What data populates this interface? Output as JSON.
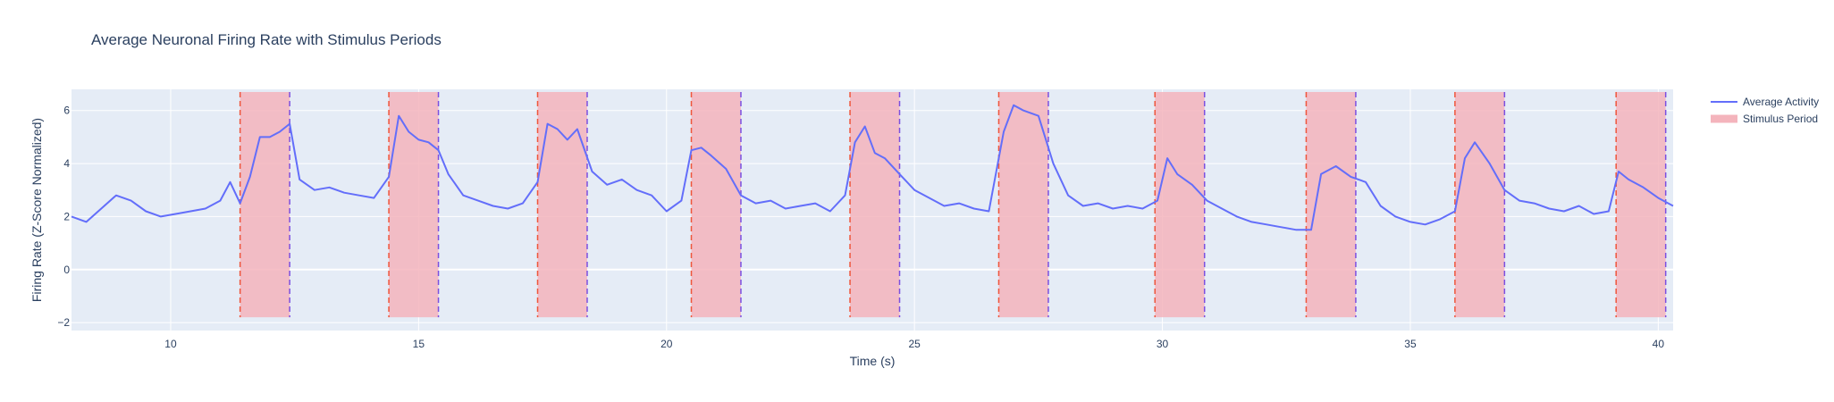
{
  "chart_data": {
    "type": "line",
    "title": "Average Neuronal Firing Rate with Stimulus Periods",
    "xlabel": "Time (s)",
    "ylabel": "Firing Rate (Z-Score Normalized)",
    "xlim": [
      8.0,
      40.3
    ],
    "ylim": [
      -2.3,
      6.8
    ],
    "x_ticks": [
      10,
      15,
      20,
      25,
      30,
      35,
      40
    ],
    "y_ticks": [
      -2,
      0,
      2,
      4,
      6
    ],
    "grid": true,
    "legend_position": "top-right",
    "colors": {
      "line": "#636efa",
      "stimulus_fill": "#f4b4bc",
      "stimulus_start_line": "#ef553b",
      "stimulus_end_line": "#7b4fe0",
      "plot_bg": "#e5ecf6",
      "grid": "#ffffff"
    },
    "series": [
      {
        "name": "Average Activity",
        "x": [
          8.0,
          8.3,
          8.6,
          8.9,
          9.2,
          9.5,
          9.8,
          10.1,
          10.4,
          10.7,
          11.0,
          11.2,
          11.4,
          11.6,
          11.8,
          12.0,
          12.2,
          12.4,
          12.6,
          12.9,
          13.2,
          13.5,
          13.8,
          14.1,
          14.4,
          14.6,
          14.8,
          15.0,
          15.2,
          15.4,
          15.6,
          15.9,
          16.2,
          16.5,
          16.8,
          17.1,
          17.4,
          17.6,
          17.8,
          18.0,
          18.2,
          18.5,
          18.8,
          19.1,
          19.4,
          19.7,
          20.0,
          20.3,
          20.5,
          20.7,
          20.9,
          21.2,
          21.5,
          21.8,
          22.1,
          22.4,
          22.7,
          23.0,
          23.3,
          23.6,
          23.8,
          24.0,
          24.2,
          24.4,
          24.7,
          25.0,
          25.3,
          25.6,
          25.9,
          26.2,
          26.5,
          26.8,
          27.0,
          27.2,
          27.5,
          27.8,
          28.1,
          28.4,
          28.7,
          29.0,
          29.3,
          29.6,
          29.9,
          30.1,
          30.3,
          30.6,
          30.9,
          31.2,
          31.5,
          31.8,
          32.1,
          32.4,
          32.7,
          33.0,
          33.2,
          33.5,
          33.8,
          34.1,
          34.4,
          34.7,
          35.0,
          35.3,
          35.6,
          35.9,
          36.1,
          36.3,
          36.6,
          36.9,
          37.2,
          37.5,
          37.8,
          38.1,
          38.4,
          38.7,
          39.0,
          39.2,
          39.4,
          39.7,
          40.0,
          40.3
        ],
        "y": [
          2.0,
          1.8,
          2.3,
          2.8,
          2.6,
          2.2,
          2.0,
          2.1,
          2.2,
          2.3,
          2.6,
          3.3,
          2.5,
          3.5,
          5.0,
          5.0,
          5.2,
          5.5,
          3.4,
          3.0,
          3.1,
          2.9,
          2.8,
          2.7,
          3.5,
          5.8,
          5.2,
          4.9,
          4.8,
          4.5,
          3.6,
          2.8,
          2.6,
          2.4,
          2.3,
          2.5,
          3.3,
          5.5,
          5.3,
          4.9,
          5.3,
          3.7,
          3.2,
          3.4,
          3.0,
          2.8,
          2.2,
          2.6,
          4.5,
          4.6,
          4.3,
          3.8,
          2.8,
          2.5,
          2.6,
          2.3,
          2.4,
          2.5,
          2.2,
          2.8,
          4.8,
          5.4,
          4.4,
          4.2,
          3.6,
          3.0,
          2.7,
          2.4,
          2.5,
          2.3,
          2.2,
          5.2,
          6.2,
          6.0,
          5.8,
          4.0,
          2.8,
          2.4,
          2.5,
          2.3,
          2.4,
          2.3,
          2.6,
          4.2,
          3.6,
          3.2,
          2.6,
          2.3,
          2.0,
          1.8,
          1.7,
          1.6,
          1.5,
          1.5,
          3.6,
          3.9,
          3.5,
          3.3,
          2.4,
          2.0,
          1.8,
          1.7,
          1.9,
          2.2,
          4.2,
          4.8,
          4.0,
          3.0,
          2.6,
          2.5,
          2.3,
          2.2,
          2.4,
          2.1,
          2.2,
          3.7,
          3.4,
          3.1,
          2.7,
          2.4
        ]
      },
      {
        "name": "Stimulus Period",
        "periods": [
          [
            11.4,
            12.4
          ],
          [
            14.4,
            15.4
          ],
          [
            17.4,
            18.4
          ],
          [
            20.5,
            21.5
          ],
          [
            23.7,
            24.7
          ],
          [
            26.7,
            27.7
          ],
          [
            29.85,
            30.85
          ],
          [
            32.9,
            33.9
          ],
          [
            35.9,
            36.9
          ],
          [
            39.15,
            40.15
          ]
        ],
        "y_range": [
          -1.8,
          6.7
        ]
      }
    ]
  }
}
